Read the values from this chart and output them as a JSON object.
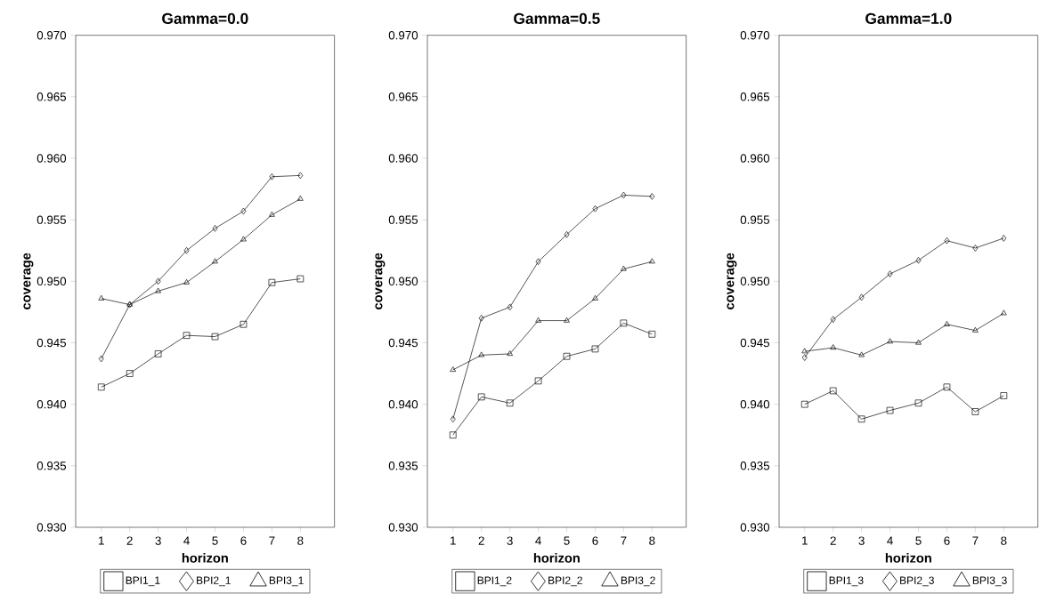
{
  "chart_data": [
    {
      "type": "line",
      "title": "Gamma=0.0",
      "xlabel": "horizon",
      "ylabel": "coverage",
      "x": [
        1,
        2,
        3,
        4,
        5,
        6,
        7,
        8
      ],
      "xlim": [
        0.1,
        9.2
      ],
      "xticks": [
        1,
        2,
        3,
        4,
        5,
        6,
        7,
        8
      ],
      "ylim": [
        0.93,
        0.97
      ],
      "yticks": [
        {
          "value": 0.93,
          "label": "0.930"
        },
        {
          "value": 0.935,
          "label": "0.935"
        },
        {
          "value": 0.94,
          "label": "0.940"
        },
        {
          "value": 0.945,
          "label": "0.945"
        },
        {
          "value": 0.95,
          "label": "0.950"
        },
        {
          "value": 0.955,
          "label": "0.955"
        },
        {
          "value": 0.96,
          "label": "0.960"
        },
        {
          "value": 0.965,
          "label": "0.965"
        },
        {
          "value": 0.97,
          "label": "0.970"
        }
      ],
      "grid": false,
      "legend": "bottom",
      "line_style": "solid",
      "series": [
        {
          "name": "BPI1_1",
          "color": "#000000",
          "marker": "square",
          "values": [
            0.9414,
            0.9425,
            0.9441,
            0.9456,
            0.9455,
            0.9465,
            0.9499,
            0.9502
          ]
        },
        {
          "name": "BPI2_1",
          "color": "#000000",
          "marker": "diamond",
          "values": [
            0.9437,
            0.9481,
            0.95,
            0.9525,
            0.9543,
            0.9557,
            0.9585,
            0.9586
          ]
        },
        {
          "name": "BPI3_1",
          "color": "#000000",
          "marker": "triangle",
          "values": [
            0.9486,
            0.9481,
            0.9492,
            0.9499,
            0.9516,
            0.9534,
            0.9554,
            0.9567
          ]
        }
      ]
    },
    {
      "type": "line",
      "title": "Gamma=0.5",
      "xlabel": "horizon",
      "ylabel": "coverage",
      "x": [
        1,
        2,
        3,
        4,
        5,
        6,
        7,
        8
      ],
      "xlim": [
        0.1,
        9.2
      ],
      "xticks": [
        1,
        2,
        3,
        4,
        5,
        6,
        7,
        8
      ],
      "ylim": [
        0.93,
        0.97
      ],
      "yticks": [
        {
          "value": 0.93,
          "label": "0.930"
        },
        {
          "value": 0.935,
          "label": "0.935"
        },
        {
          "value": 0.94,
          "label": "0.940"
        },
        {
          "value": 0.945,
          "label": "0.945"
        },
        {
          "value": 0.95,
          "label": "0.950"
        },
        {
          "value": 0.955,
          "label": "0.955"
        },
        {
          "value": 0.96,
          "label": "0.960"
        },
        {
          "value": 0.965,
          "label": "0.965"
        },
        {
          "value": 0.97,
          "label": "0.970"
        }
      ],
      "grid": false,
      "legend": "bottom",
      "line_style": "solid",
      "series": [
        {
          "name": "BPI1_2",
          "color": "#000000",
          "marker": "square",
          "values": [
            0.9375,
            0.9406,
            0.9401,
            0.9419,
            0.9439,
            0.9445,
            0.9466,
            0.9457
          ]
        },
        {
          "name": "BPI2_2",
          "color": "#000000",
          "marker": "diamond",
          "values": [
            0.9388,
            0.947,
            0.9479,
            0.9516,
            0.9538,
            0.9559,
            0.957,
            0.9569
          ]
        },
        {
          "name": "BPI3_2",
          "color": "#000000",
          "marker": "triangle",
          "values": [
            0.9428,
            0.944,
            0.9441,
            0.9468,
            0.9468,
            0.9486,
            0.951,
            0.9516
          ]
        }
      ]
    },
    {
      "type": "line",
      "title": "Gamma=1.0",
      "xlabel": "horizon",
      "ylabel": "coverage",
      "x": [
        1,
        2,
        3,
        4,
        5,
        6,
        7,
        8
      ],
      "xlim": [
        0.1,
        9.2
      ],
      "xticks": [
        1,
        2,
        3,
        4,
        5,
        6,
        7,
        8
      ],
      "ylim": [
        0.93,
        0.97
      ],
      "yticks": [
        {
          "value": 0.93,
          "label": "0.930"
        },
        {
          "value": 0.935,
          "label": "0.935"
        },
        {
          "value": 0.94,
          "label": "0.940"
        },
        {
          "value": 0.945,
          "label": "0.945"
        },
        {
          "value": 0.95,
          "label": "0.950"
        },
        {
          "value": 0.955,
          "label": "0.955"
        },
        {
          "value": 0.96,
          "label": "0.960"
        },
        {
          "value": 0.965,
          "label": "0.965"
        },
        {
          "value": 0.97,
          "label": "0.970"
        }
      ],
      "grid": false,
      "legend": "bottom",
      "line_style": "solid",
      "series": [
        {
          "name": "BPI1_3",
          "color": "#000000",
          "marker": "square",
          "values": [
            0.94,
            0.9411,
            0.9388,
            0.9395,
            0.9401,
            0.9414,
            0.9394,
            0.9407
          ]
        },
        {
          "name": "BPI2_3",
          "color": "#000000",
          "marker": "diamond",
          "values": [
            0.9438,
            0.9469,
            0.9487,
            0.9506,
            0.9517,
            0.9533,
            0.9527,
            0.9535
          ]
        },
        {
          "name": "BPI3_3",
          "color": "#000000",
          "marker": "triangle",
          "values": [
            0.9443,
            0.9446,
            0.944,
            0.9451,
            0.945,
            0.9465,
            0.946,
            0.9474
          ]
        }
      ]
    }
  ]
}
